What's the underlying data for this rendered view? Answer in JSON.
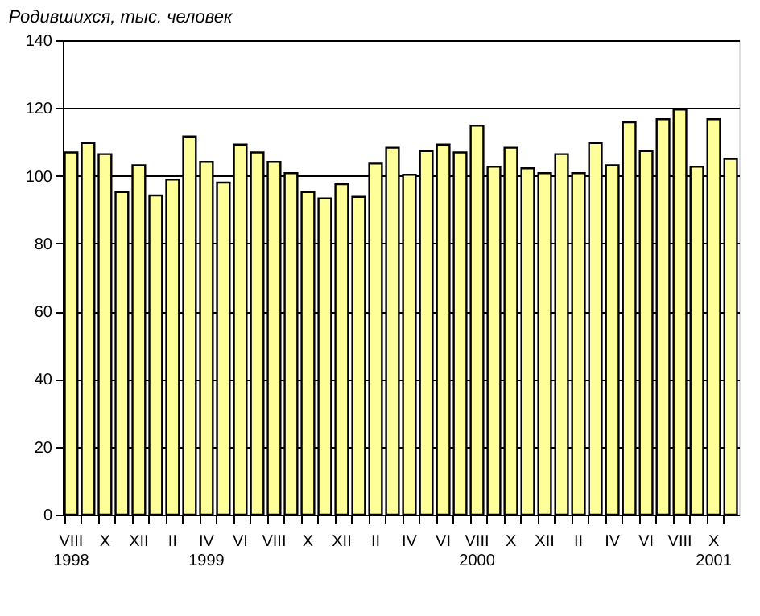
{
  "chart_data": {
    "type": "bar",
    "title": "Родившихся, тыс. человек",
    "categories": [
      "VIII\n\n1998",
      null,
      "X",
      null,
      "XII",
      null,
      "II",
      null,
      "IV\n\n1999",
      null,
      "VI",
      null,
      "VIII",
      null,
      "X",
      null,
      "XII",
      null,
      "II",
      null,
      "IV",
      null,
      "VI",
      null,
      "VIII\n\n2000",
      null,
      "X",
      null,
      "XII",
      null,
      "II",
      null,
      "IV",
      null,
      "VI",
      null,
      "VIII",
      null,
      "X\n\n2001",
      null
    ],
    "values": [
      106.9,
      109.7,
      106.4,
      95.2,
      103.1,
      94.2,
      98.9,
      111.6,
      104.1,
      98.0,
      109.2,
      106.9,
      104.1,
      100.8,
      95.2,
      93.3,
      97.5,
      93.8,
      103.6,
      108.3,
      100.3,
      107.3,
      109.2,
      106.9,
      114.8,
      102.7,
      108.3,
      102.2,
      100.8,
      106.4,
      100.8,
      109.7,
      103.1,
      115.8,
      107.3,
      116.7,
      119.5,
      102.7,
      116.7,
      105.0
    ],
    "color": "#ffff99",
    "ylim": [
      0,
      140
    ],
    "yticks": [
      0,
      20,
      40,
      60,
      80,
      100,
      120,
      140
    ],
    "grid": "y"
  }
}
